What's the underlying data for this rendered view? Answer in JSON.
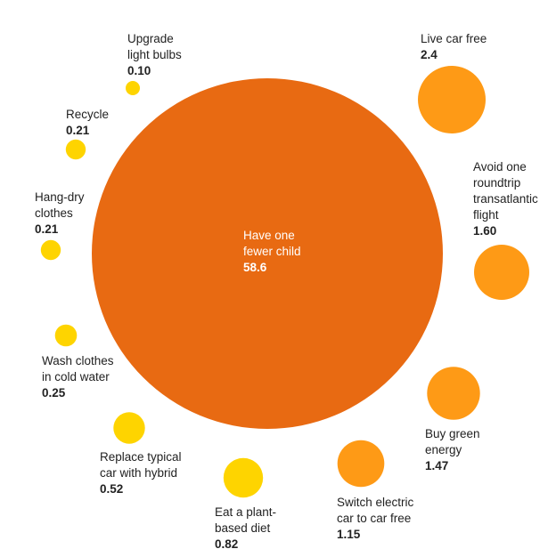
{
  "chart_data": {
    "type": "bubble",
    "units": "",
    "colors": {
      "large": "#e86a12",
      "medium": "#fe9a16",
      "small": "#fed400"
    },
    "items": [
      {
        "label_lines": [
          "Have one",
          "fewer child"
        ],
        "value": 58.6,
        "value_text": "58.6",
        "color": "#e86a12"
      },
      {
        "label_lines": [
          "Live car free"
        ],
        "value": 2.4,
        "value_text": "2.4",
        "color": "#fe9a16"
      },
      {
        "label_lines": [
          "Avoid one",
          "roundtrip",
          "transatlantic",
          "flight"
        ],
        "value": 1.6,
        "value_text": "1.60",
        "color": "#fe9a16"
      },
      {
        "label_lines": [
          "Buy green",
          "energy"
        ],
        "value": 1.47,
        "value_text": "1.47",
        "color": "#fe9a16"
      },
      {
        "label_lines": [
          "Switch electric",
          "car to car free"
        ],
        "value": 1.15,
        "value_text": "1.15",
        "color": "#fe9a16"
      },
      {
        "label_lines": [
          "Eat a plant-",
          "based diet"
        ],
        "value": 0.82,
        "value_text": "0.82",
        "color": "#fed400"
      },
      {
        "label_lines": [
          "Replace typical",
          "car with hybrid"
        ],
        "value": 0.52,
        "value_text": "0.52",
        "color": "#fed400"
      },
      {
        "label_lines": [
          "Wash clothes",
          "in cold water"
        ],
        "value": 0.25,
        "value_text": "0.25",
        "color": "#fed400"
      },
      {
        "label_lines": [
          "Hang-dry",
          "clothes"
        ],
        "value": 0.21,
        "value_text": "0.21",
        "color": "#fed400"
      },
      {
        "label_lines": [
          "Recycle"
        ],
        "value": 0.21,
        "value_text": "0.21",
        "color": "#fed400"
      },
      {
        "label_lines": [
          "Upgrade",
          "light bulbs"
        ],
        "value": 0.1,
        "value_text": "0.10",
        "color": "#fed400"
      }
    ]
  }
}
